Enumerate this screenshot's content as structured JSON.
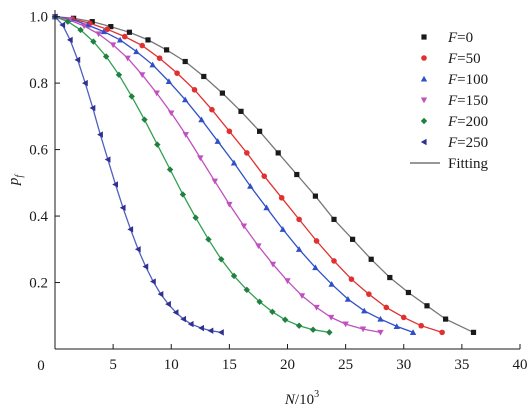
{
  "chart_data": {
    "type": "line",
    "title": "",
    "xlabel": {
      "var": "N",
      "rest": "/10",
      "sup": "3"
    },
    "ylabel": {
      "var": "p",
      "sub": "f"
    },
    "xlim": [
      0,
      40
    ],
    "ylim": [
      0,
      1.02
    ],
    "x_ticks": [
      5,
      10,
      15,
      20,
      25,
      30,
      35,
      40
    ],
    "x_tick_labels": [
      "5",
      "10",
      "15",
      "20",
      "25",
      "30",
      "35",
      "40"
    ],
    "y_ticks": [
      0.2,
      0.4,
      0.6,
      0.8,
      1.0
    ],
    "y_tick_labels": [
      "0.2",
      "0.4",
      "0.6",
      "0.8",
      "1.0"
    ],
    "origin_label": "0",
    "grid": false,
    "legend_position": "top-right",
    "legend_fitting_label": "Fitting",
    "fitting_color": "#777777",
    "series": [
      {
        "var": "F",
        "rest": "=0",
        "marker": "square",
        "color": "#1a1a1a",
        "line_color": "#777777",
        "x": [
          0,
          1.6,
          3.2,
          4.8,
          6.4,
          8.0,
          9.6,
          11.2,
          12.8,
          14.4,
          16.0,
          17.6,
          19.2,
          20.8,
          22.4,
          24.0,
          25.6,
          27.2,
          28.8,
          30.4,
          32.0,
          33.6,
          36.0
        ],
        "y": [
          1.0,
          0.995,
          0.985,
          0.97,
          0.953,
          0.93,
          0.9,
          0.865,
          0.82,
          0.77,
          0.715,
          0.655,
          0.59,
          0.525,
          0.46,
          0.39,
          0.33,
          0.27,
          0.215,
          0.17,
          0.13,
          0.09,
          0.05
        ]
      },
      {
        "var": "F",
        "rest": "=50",
        "marker": "circle",
        "color": "#e03030",
        "line_color": "#e03030",
        "x": [
          0,
          1.5,
          3.0,
          4.5,
          6.0,
          7.5,
          9.0,
          10.5,
          12.0,
          13.5,
          15.0,
          16.5,
          18.0,
          19.5,
          21.0,
          22.5,
          24.0,
          25.5,
          27.0,
          28.5,
          30.0,
          31.5,
          33.3
        ],
        "y": [
          1.0,
          0.993,
          0.98,
          0.962,
          0.94,
          0.913,
          0.875,
          0.83,
          0.78,
          0.72,
          0.655,
          0.59,
          0.52,
          0.455,
          0.39,
          0.325,
          0.265,
          0.21,
          0.165,
          0.125,
          0.095,
          0.07,
          0.05
        ]
      },
      {
        "var": "F",
        "rest": "=100",
        "marker": "triangle-up",
        "color": "#3050c8",
        "line_color": "#3050c8",
        "x": [
          0,
          1.4,
          2.8,
          4.2,
          5.6,
          7.0,
          8.4,
          9.8,
          11.2,
          12.6,
          14.0,
          15.4,
          16.8,
          18.2,
          19.6,
          21.0,
          22.4,
          23.8,
          25.2,
          26.6,
          28.0,
          29.4,
          30.8
        ],
        "y": [
          1.0,
          0.992,
          0.975,
          0.955,
          0.93,
          0.895,
          0.855,
          0.805,
          0.75,
          0.69,
          0.625,
          0.56,
          0.49,
          0.425,
          0.36,
          0.3,
          0.245,
          0.195,
          0.15,
          0.115,
          0.09,
          0.068,
          0.05
        ]
      },
      {
        "var": "F",
        "rest": "=150",
        "marker": "triangle-down",
        "color": "#c050c0",
        "line_color": "#c050c0",
        "x": [
          0,
          1.25,
          2.5,
          3.75,
          5.0,
          6.25,
          7.5,
          8.75,
          10.0,
          11.25,
          12.5,
          13.75,
          15.0,
          16.25,
          17.5,
          18.75,
          20.0,
          21.25,
          22.5,
          23.75,
          25.0,
          26.5,
          28.0
        ],
        "y": [
          1.0,
          0.99,
          0.972,
          0.948,
          0.915,
          0.875,
          0.825,
          0.77,
          0.71,
          0.645,
          0.575,
          0.505,
          0.435,
          0.37,
          0.31,
          0.255,
          0.205,
          0.16,
          0.125,
          0.095,
          0.075,
          0.06,
          0.05
        ]
      },
      {
        "var": "F",
        "rest": "=200",
        "marker": "diamond",
        "color": "#208040",
        "line_color": "#30a050",
        "x": [
          0,
          1.1,
          2.2,
          3.3,
          4.4,
          5.5,
          6.6,
          7.7,
          8.8,
          9.9,
          11.0,
          12.1,
          13.2,
          14.3,
          15.4,
          16.5,
          17.6,
          18.7,
          19.8,
          21.0,
          22.2,
          23.6
        ],
        "y": [
          1.0,
          0.985,
          0.96,
          0.925,
          0.88,
          0.825,
          0.76,
          0.69,
          0.615,
          0.54,
          0.465,
          0.395,
          0.33,
          0.27,
          0.22,
          0.178,
          0.142,
          0.112,
          0.088,
          0.07,
          0.058,
          0.05
        ]
      },
      {
        "var": "F",
        "rest": "=250",
        "marker": "triangle-left",
        "color": "#303090",
        "line_color": "#5060c0",
        "x": [
          0,
          0.65,
          1.3,
          1.95,
          2.6,
          3.25,
          3.9,
          4.55,
          5.2,
          5.85,
          6.5,
          7.15,
          7.8,
          8.45,
          9.1,
          9.75,
          10.4,
          11.05,
          11.7,
          12.6,
          13.4,
          14.3
        ],
        "y": [
          1.0,
          0.975,
          0.93,
          0.87,
          0.8,
          0.725,
          0.645,
          0.57,
          0.495,
          0.425,
          0.36,
          0.3,
          0.248,
          0.203,
          0.165,
          0.135,
          0.11,
          0.09,
          0.075,
          0.063,
          0.055,
          0.05
        ]
      }
    ]
  }
}
